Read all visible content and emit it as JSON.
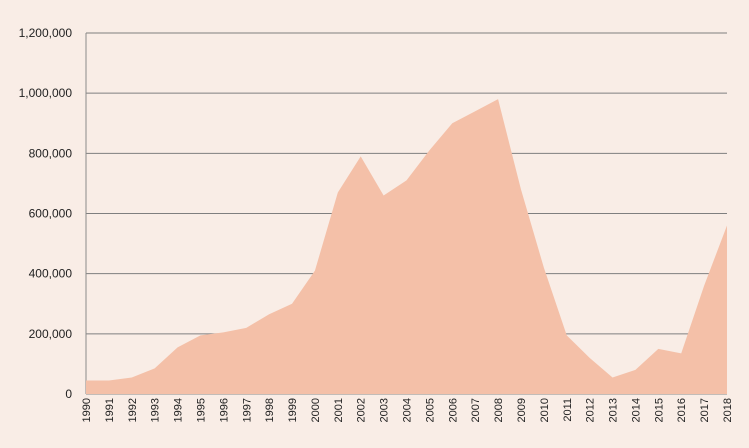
{
  "chart_data": {
    "type": "area",
    "title": "",
    "xlabel": "",
    "ylabel": "",
    "x": [
      "1990",
      "1991",
      "1992",
      "1993",
      "1994",
      "1995",
      "1996",
      "1997",
      "1998",
      "1999",
      "2000",
      "2001",
      "2002",
      "2003",
      "2004",
      "2005",
      "2006",
      "2007",
      "2008",
      "2009",
      "2010",
      "2011",
      "2012",
      "2013",
      "2014",
      "2015",
      "2016",
      "2017",
      "2018"
    ],
    "values": [
      45000,
      45000,
      55000,
      85000,
      155000,
      195000,
      205000,
      220000,
      265000,
      300000,
      410000,
      670000,
      790000,
      660000,
      710000,
      810000,
      900000,
      940000,
      980000,
      680000,
      420000,
      195000,
      120000,
      55000,
      80000,
      150000,
      135000,
      360000,
      560000
    ],
    "ylim": [
      0,
      1200000
    ],
    "yticks": [
      "0",
      "200,000",
      "400,000",
      "600,000",
      "800,000",
      "1,000,000",
      "1,200,000"
    ],
    "ytick_values": [
      0,
      200000,
      400000,
      600000,
      800000,
      1000000,
      1200000
    ],
    "grid": true,
    "colors": {
      "area": "#f4c0a8",
      "background": "#f9ede6",
      "grid": "#7f7f7f"
    }
  }
}
